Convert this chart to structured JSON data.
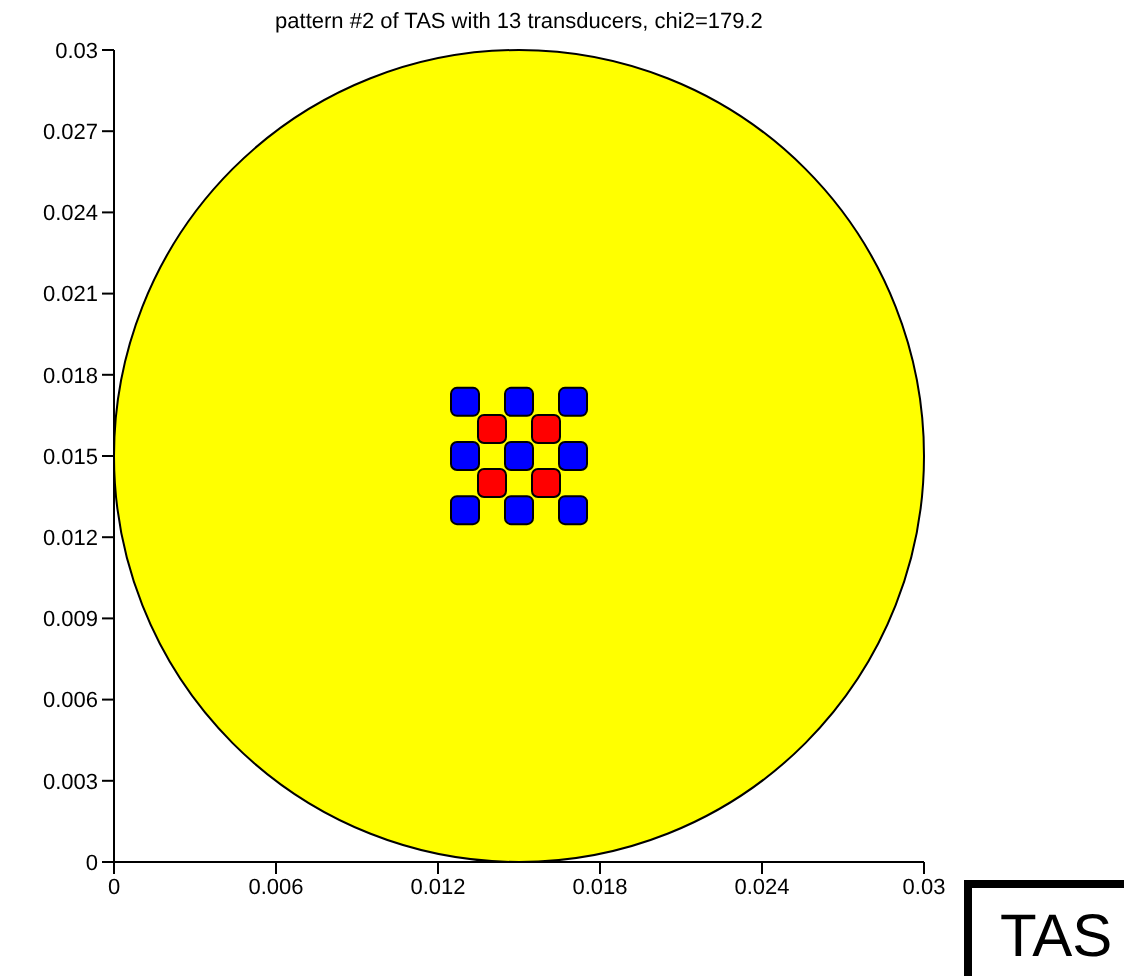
{
  "chart_data": {
    "type": "scatter",
    "title": "pattern #2 of TAS with   13 transducers, chi2=179.2",
    "series": [
      {
        "color": "#0000ff",
        "x": [
          0.013,
          0.015,
          0.017,
          0.013,
          0.015,
          0.017,
          0.013,
          0.015,
          0.017
        ],
        "values": [
          0.017,
          0.017,
          0.017,
          0.015,
          0.015,
          0.015,
          0.013,
          0.013,
          0.013
        ]
      },
      {
        "color": "#ff0000",
        "x": [
          0.014,
          0.016,
          0.014,
          0.016
        ],
        "values": [
          0.016,
          0.016,
          0.014,
          0.014
        ]
      }
    ],
    "marker": "square",
    "xlim": [
      0,
      0.03
    ],
    "xticks": [
      0,
      0.006,
      0.012,
      0.018,
      0.024,
      0.03
    ],
    "ylim": [
      0,
      0.03
    ],
    "yticks": [
      0,
      0.003,
      0.006,
      0.009,
      0.012,
      0.015,
      0.018,
      0.021,
      0.024,
      0.027,
      0.03
    ],
    "grid": false,
    "legend": false,
    "annotations": [
      "TAS"
    ]
  }
}
